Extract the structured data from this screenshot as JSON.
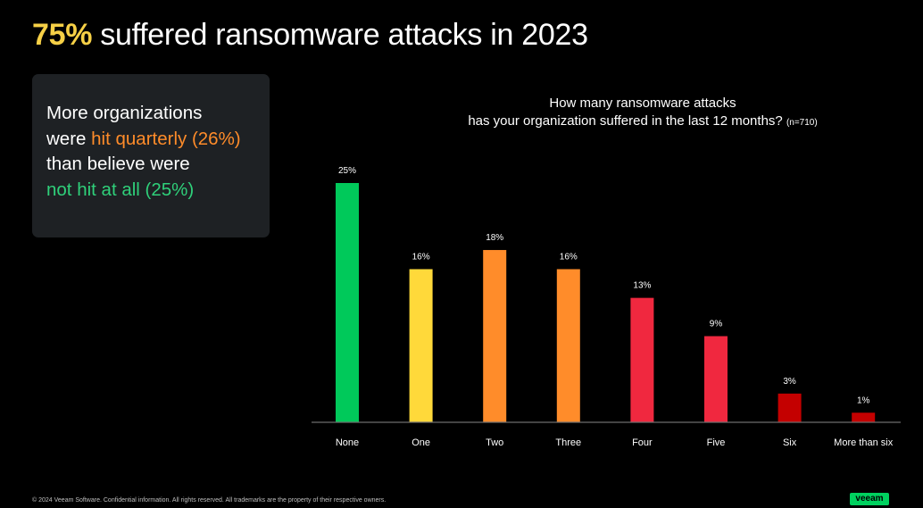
{
  "headline": {
    "highlight": "75%",
    "rest": " suffered ransomware attacks in 2023",
    "highlight_color": "#f6d046"
  },
  "callout": {
    "line1": "More organizations",
    "line2_pre": "were ",
    "line2_hl": "hit quarterly (26%)",
    "line3": "than believe were",
    "line4_hl": "not hit at all (25%)",
    "orange": "#ff8c2a",
    "green": "#2fd07a"
  },
  "chart_data": {
    "type": "bar",
    "title_line1": "How many ransomware attacks",
    "title_line2": "has your organization suffered in the last 12 months?",
    "note": "(n=710)",
    "categories": [
      "None",
      "One",
      "Two",
      "Three",
      "Four",
      "Five",
      "Six",
      "More than six"
    ],
    "values": [
      25,
      16,
      18,
      16,
      13,
      9,
      3,
      1
    ],
    "labels": [
      "25%",
      "16%",
      "18%",
      "16%",
      "13%",
      "9%",
      "3%",
      "1%"
    ],
    "colors": [
      "#00c95a",
      "#ffd93a",
      "#ff8c2a",
      "#ff8c2a",
      "#f0283f",
      "#f0283f",
      "#c40000",
      "#c40000"
    ],
    "ylim": [
      0,
      25
    ],
    "grid": false,
    "legend": "none"
  },
  "footer": "© 2024 Veeam Software. Confidential information. All rights reserved. All trademarks are the property of their respective owners.",
  "logo": "veeam"
}
